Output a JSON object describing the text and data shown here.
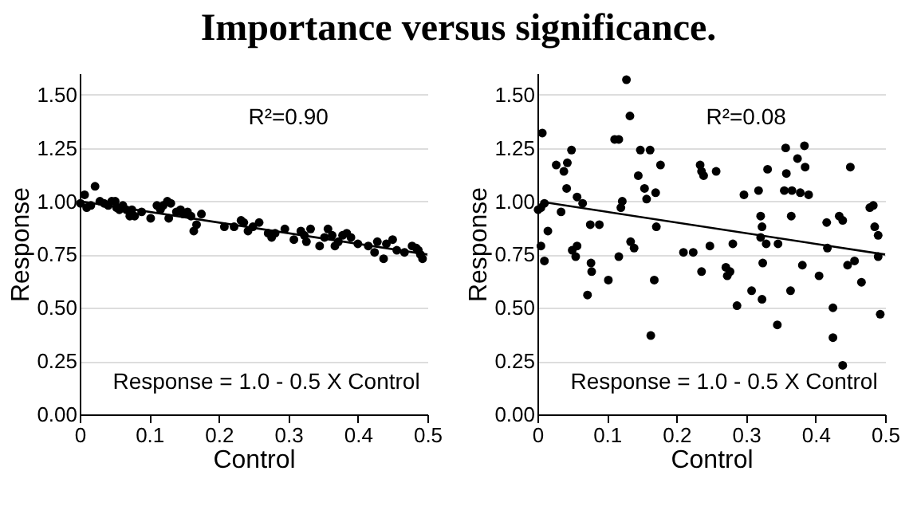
{
  "chart_data": [
    {
      "type": "scatter",
      "title": "Importance versus significance.",
      "xlabel": "Control",
      "ylabel": "Response",
      "xlim": [
        0,
        0.5
      ],
      "xticks": [
        0,
        0.1,
        0.2,
        0.3,
        0.4,
        0.5
      ],
      "ylim": [
        0,
        1.6
      ],
      "yticks": [
        {
          "value": 0,
          "label": "0.00"
        },
        {
          "value": 0.25,
          "label": "0.25"
        },
        {
          "value": 0.5,
          "label": "0.50"
        },
        {
          "value": 0.75,
          "label": "0.75"
        },
        {
          "value": 1,
          "label": "1.00"
        },
        {
          "value": 1.25,
          "label": "1.25"
        },
        {
          "value": 1.5,
          "label": "1.50"
        }
      ],
      "grid": "y",
      "annotations": [
        "R²=0.90",
        "Response = 1.0 - 0.5 X Control"
      ],
      "series": [
        {
          "type": "scatter",
          "marker": "circle",
          "color": "#000000",
          "x": [
            0.001,
            0.007,
            0.01,
            0.016,
            0.022,
            0.029,
            0.035,
            0.041,
            0.046,
            0.051,
            0.053,
            0.057,
            0.062,
            0.067,
            0.072,
            0.075,
            0.079,
            0.089,
            0.102,
            0.111,
            0.116,
            0.12,
            0.126,
            0.131,
            0.128,
            0.139,
            0.145,
            0.149,
            0.155,
            0.16,
            0.164,
            0.168,
            0.175,
            0.208,
            0.222,
            0.232,
            0.236,
            0.242,
            0.249,
            0.258,
            0.271,
            0.276,
            0.281,
            0.295,
            0.308,
            0.318,
            0.323,
            0.326,
            0.332,
            0.345,
            0.352,
            0.357,
            0.363,
            0.367,
            0.372,
            0.378,
            0.384,
            0.39,
            0.4,
            0.415,
            0.424,
            0.428,
            0.437,
            0.441,
            0.45,
            0.456,
            0.467,
            0.478,
            0.484,
            0.487,
            0.49,
            0.493
          ],
          "values": [
            0.99,
            1.03,
            0.97,
            0.98,
            1.07,
            1.0,
            0.99,
            0.98,
            1.0,
            1.0,
            0.97,
            0.96,
            0.98,
            0.96,
            0.93,
            0.96,
            0.93,
            0.95,
            0.92,
            0.98,
            0.96,
            0.98,
            1.0,
            0.99,
            0.92,
            0.95,
            0.96,
            0.94,
            0.95,
            0.93,
            0.86,
            0.89,
            0.94,
            0.88,
            0.88,
            0.91,
            0.9,
            0.86,
            0.88,
            0.9,
            0.85,
            0.83,
            0.85,
            0.87,
            0.82,
            0.86,
            0.84,
            0.81,
            0.87,
            0.79,
            0.83,
            0.87,
            0.84,
            0.79,
            0.81,
            0.84,
            0.85,
            0.83,
            0.8,
            0.79,
            0.76,
            0.81,
            0.73,
            0.8,
            0.82,
            0.77,
            0.76,
            0.79,
            0.78,
            0.77,
            0.75,
            0.73
          ]
        },
        {
          "type": "line",
          "color": "#000000",
          "x": [
            0,
            0.5
          ],
          "values": [
            1.0,
            0.75
          ]
        }
      ]
    },
    {
      "type": "scatter",
      "xlabel": "Control",
      "ylabel": "Response",
      "xlim": [
        0,
        0.5
      ],
      "xticks": [
        0,
        0.1,
        0.2,
        0.3,
        0.4,
        0.5
      ],
      "ylim": [
        0,
        1.6
      ],
      "yticks": [
        {
          "value": 0,
          "label": "0.00"
        },
        {
          "value": 0.25,
          "label": "0.25"
        },
        {
          "value": 0.5,
          "label": "0.50"
        },
        {
          "value": 0.75,
          "label": "0.75"
        },
        {
          "value": 1,
          "label": "1.00"
        },
        {
          "value": 1.25,
          "label": "1.25"
        },
        {
          "value": 1.5,
          "label": "1.50"
        }
      ],
      "grid": "y",
      "annotations": [
        "R²=0.08",
        "Response = 1.0 - 0.5 X Control"
      ],
      "series": [
        {
          "type": "scatter",
          "marker": "circle",
          "color": "#000000",
          "x": [
            0.007,
            0.001,
            0.005,
            0.01,
            0.005,
            0.01,
            0.015,
            0.027,
            0.034,
            0.038,
            0.043,
            0.049,
            0.042,
            0.057,
            0.065,
            0.05,
            0.057,
            0.055,
            0.072,
            0.076,
            0.089,
            0.077,
            0.078,
            0.102,
            0.111,
            0.117,
            0.122,
            0.12,
            0.117,
            0.128,
            0.133,
            0.134,
            0.139,
            0.145,
            0.148,
            0.154,
            0.157,
            0.162,
            0.17,
            0.177,
            0.171,
            0.168,
            0.163,
            0.21,
            0.224,
            0.234,
            0.236,
            0.239,
            0.236,
            0.248,
            0.257,
            0.271,
            0.273,
            0.277,
            0.281,
            0.287,
            0.297,
            0.308,
            0.318,
            0.321,
            0.323,
            0.321,
            0.324,
            0.323,
            0.329,
            0.331,
            0.346,
            0.345,
            0.357,
            0.358,
            0.355,
            0.366,
            0.365,
            0.364,
            0.374,
            0.378,
            0.384,
            0.385,
            0.381,
            0.39,
            0.405,
            0.416,
            0.417,
            0.425,
            0.425,
            0.434,
            0.439,
            0.439,
            0.446,
            0.45,
            0.456,
            0.466,
            0.478,
            0.483,
            0.485,
            0.49,
            0.49,
            0.493
          ],
          "values": [
            1.32,
            0.96,
            0.97,
            0.99,
            0.79,
            0.72,
            0.86,
            1.17,
            0.95,
            1.14,
            1.18,
            1.24,
            1.06,
            1.02,
            0.99,
            0.77,
            0.79,
            0.74,
            0.56,
            0.89,
            0.89,
            0.71,
            0.67,
            0.63,
            1.29,
            1.29,
            1.0,
            0.97,
            0.74,
            1.57,
            1.4,
            0.81,
            0.78,
            1.12,
            1.24,
            1.06,
            1.01,
            1.24,
            1.04,
            1.17,
            0.88,
            0.63,
            0.37,
            0.76,
            0.76,
            1.17,
            1.14,
            1.12,
            0.67,
            0.79,
            1.14,
            0.69,
            0.65,
            0.67,
            0.8,
            0.51,
            1.03,
            0.58,
            1.05,
            0.93,
            0.88,
            0.83,
            0.71,
            0.54,
            0.8,
            1.15,
            0.8,
            0.42,
            1.25,
            1.13,
            1.05,
            1.05,
            0.93,
            0.58,
            1.2,
            1.04,
            1.26,
            1.16,
            0.7,
            1.03,
            0.65,
            0.9,
            0.78,
            0.5,
            0.36,
            0.93,
            0.91,
            0.23,
            0.7,
            1.16,
            0.72,
            0.62,
            0.97,
            0.98,
            0.88,
            0.84,
            0.74,
            0.47
          ]
        },
        {
          "type": "line",
          "color": "#000000",
          "x": [
            0.01,
            0.5
          ],
          "values": [
            0.995,
            0.75
          ]
        }
      ]
    }
  ]
}
